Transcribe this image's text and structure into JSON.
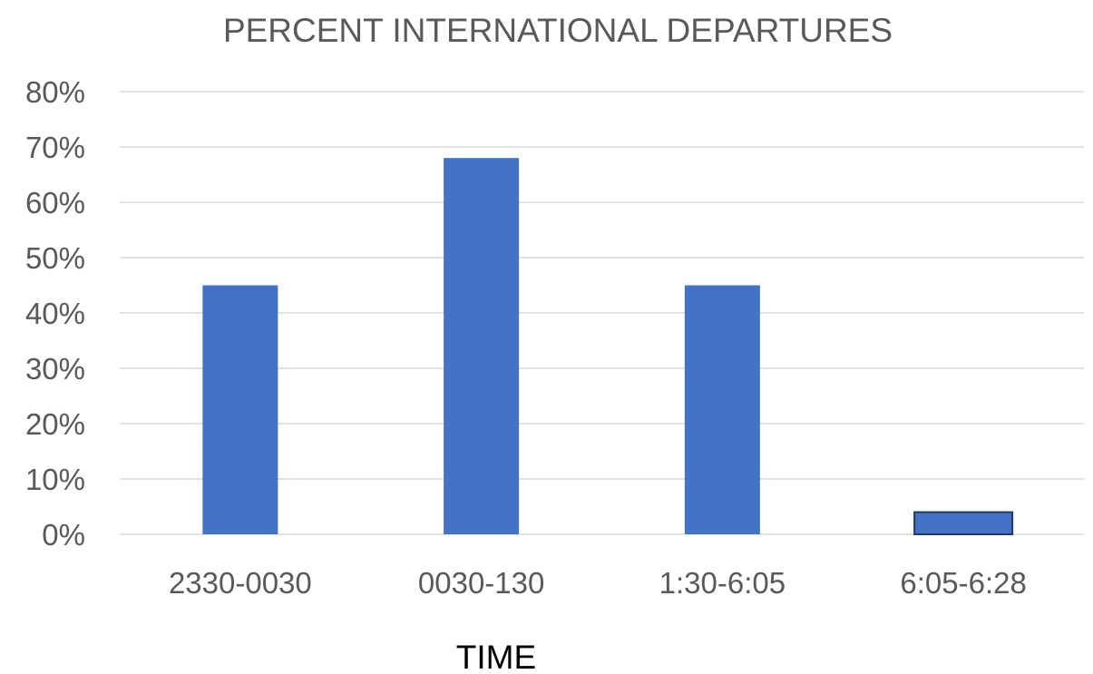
{
  "chart_data": {
    "type": "bar",
    "title": "PERCENT INTERNATIONAL DEPARTURES",
    "xlabel": "TIME",
    "ylabel": "",
    "categories": [
      "2330-0030",
      "0030-130",
      "1:30-6:05",
      "6:05-6:28"
    ],
    "values": [
      0.45,
      0.68,
      0.45,
      0.04
    ],
    "ylim": [
      0,
      0.8
    ],
    "yticks": [
      0,
      0.1,
      0.2,
      0.3,
      0.4,
      0.5,
      0.6,
      0.7,
      0.8
    ],
    "ytick_labels": [
      "0%",
      "10%",
      "20%",
      "30%",
      "40%",
      "50%",
      "60%",
      "70%",
      "80%"
    ],
    "grid": true,
    "legend": "none",
    "highlighted_category": "6:05-6:28",
    "colors": {
      "bar": "#4472c4",
      "bar_highlight_outline": "#1f3864",
      "gridline": "#d9d9d9",
      "text": "#595959",
      "axis_title": "#000000"
    }
  }
}
